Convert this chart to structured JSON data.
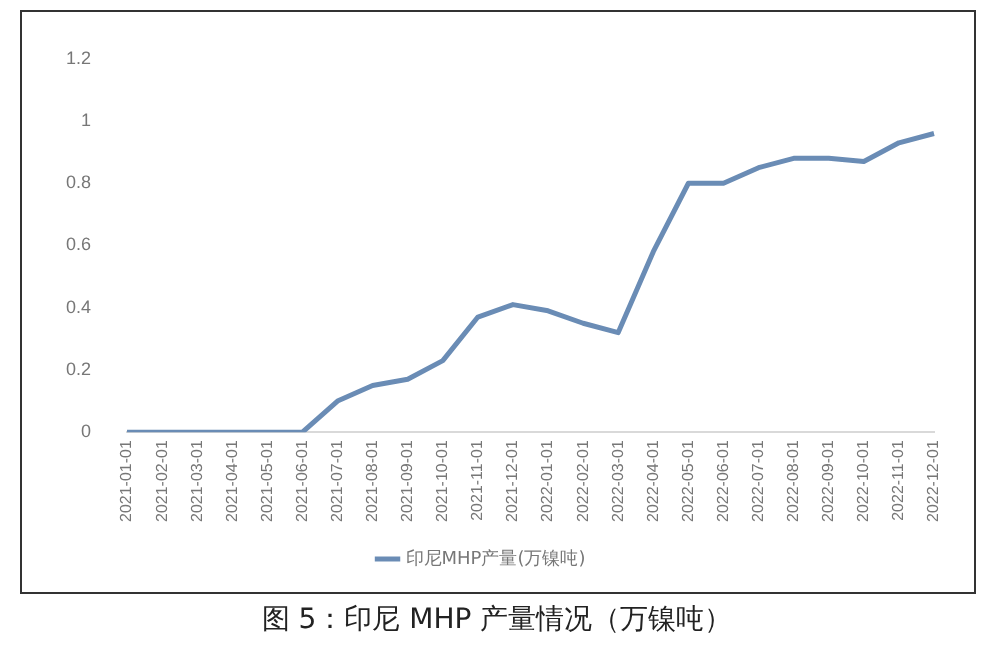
{
  "chart_data": {
    "type": "line",
    "categories": [
      "2021-01-01",
      "2021-02-01",
      "2021-03-01",
      "2021-04-01",
      "2021-05-01",
      "2021-06-01",
      "2021-07-01",
      "2021-08-01",
      "2021-09-01",
      "2021-10-01",
      "2021-11-01",
      "2021-12-01",
      "2022-01-01",
      "2022-02-01",
      "2022-03-01",
      "2022-04-01",
      "2022-05-01",
      "2022-06-01",
      "2022-07-01",
      "2022-08-01",
      "2022-09-01",
      "2022-10-01",
      "2022-11-01",
      "2022-12-01"
    ],
    "series": [
      {
        "name": "印尼MHP产量(万镍吨)",
        "color": "#6a8cb5",
        "values": [
          0,
          0,
          0,
          0,
          0,
          0,
          0.1,
          0.15,
          0.17,
          0.23,
          0.37,
          0.41,
          0.39,
          0.35,
          0.32,
          0.58,
          0.8,
          0.8,
          0.85,
          0.88,
          0.88,
          0.87,
          0.93,
          0.96
        ]
      }
    ],
    "ylim": [
      0,
      1.2
    ],
    "yticks": [
      0,
      0.2,
      0.4,
      0.6,
      0.8,
      1,
      1.2
    ],
    "grid": false,
    "legend": "bottom",
    "marker": "none",
    "line_style": "solid",
    "annotations": [
      "图 5：印尼 MHP 产量情况（万镍吨）"
    ]
  }
}
